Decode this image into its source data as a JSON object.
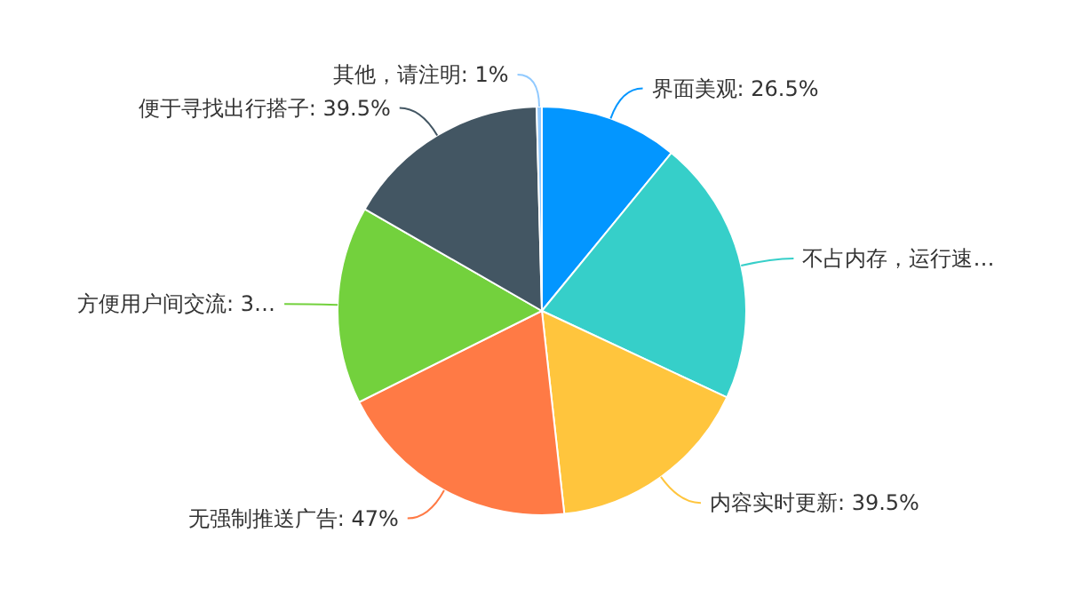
{
  "chart_data": {
    "type": "pie",
    "categories": [
      "界面美观",
      "不占内存，运行速…",
      "内容实时更新",
      "无强制推送广告",
      "方便用户间交流",
      "便于寻找出行搭子",
      "其他，请注明"
    ],
    "values": [
      26.5,
      51,
      39.5,
      47,
      38,
      39.5,
      1
    ],
    "value_labels": [
      "26.5%",
      null,
      "39.5%",
      "47%",
      "3…",
      "39.5%",
      "1%"
    ],
    "colors": [
      "#0396ff",
      "#36cfc9",
      "#ffc53d",
      "#ff7a45",
      "#73d13d",
      "#435663",
      "#91caff"
    ],
    "legend": false
  }
}
